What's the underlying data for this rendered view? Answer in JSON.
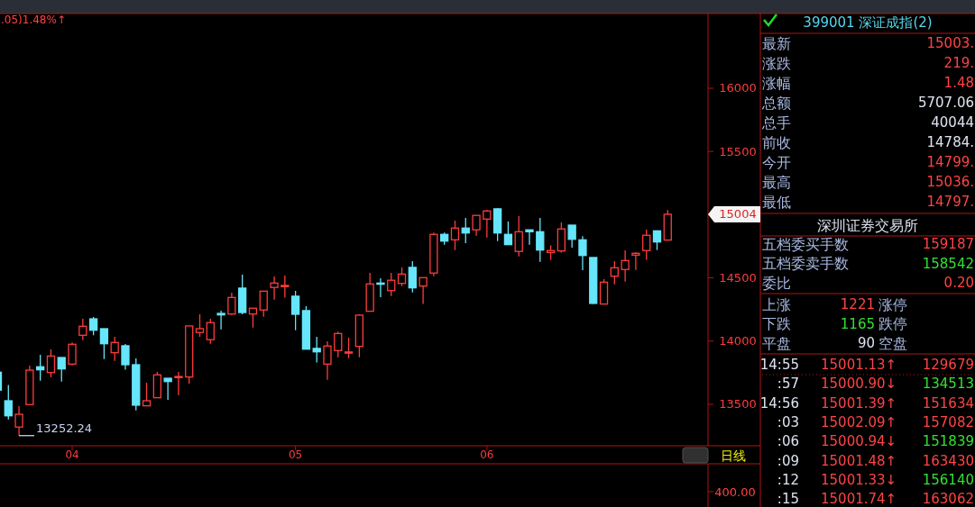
{
  "chart_data": {
    "type": "candlestick",
    "categories": [
      null,
      null,
      null,
      null,
      null,
      null,
      null,
      "04",
      null,
      null,
      null,
      null,
      null,
      null,
      null,
      null,
      null,
      null,
      null,
      null,
      null,
      null,
      null,
      null,
      null,
      null,
      null,
      null,
      "05",
      null,
      null,
      null,
      null,
      null,
      null,
      null,
      null,
      null,
      null,
      null,
      null,
      null,
      null,
      null,
      null,
      null,
      "06",
      null,
      null,
      null,
      null,
      null,
      null,
      null,
      null,
      null,
      null,
      null,
      null,
      null,
      null,
      null,
      null,
      null
    ],
    "ohlc": [
      [
        13754,
        13754,
        13612,
        13612
      ],
      [
        13528,
        13652,
        13381,
        13409
      ],
      [
        13320,
        13486,
        13252.24,
        13421
      ],
      [
        13498,
        13806,
        13498,
        13770
      ],
      [
        13797,
        13892,
        13687,
        13773
      ],
      [
        13751,
        13934,
        13714,
        13882
      ],
      [
        13870,
        13870,
        13680,
        13780
      ],
      [
        13818,
        13989,
        13808,
        13975
      ],
      [
        14046,
        14176,
        14008,
        14117
      ],
      [
        14176,
        14191,
        14046,
        14086
      ],
      [
        14098,
        14098,
        13858,
        13979
      ],
      [
        13908,
        14034,
        13844,
        13989
      ],
      [
        13963,
        13977,
        13773,
        13813
      ],
      [
        13813,
        13863,
        13452,
        13493
      ],
      [
        13488,
        13671,
        13488,
        13528
      ],
      [
        13552,
        13756,
        13552,
        13733
      ],
      [
        13706,
        13706,
        13535,
        13680
      ],
      [
        13716,
        13756,
        13571,
        13720
      ],
      [
        13716,
        14120,
        13664,
        14120
      ],
      [
        14068,
        14212,
        14034,
        14098
      ],
      [
        14011,
        14176,
        13979,
        14146
      ],
      [
        14219,
        14241,
        14093,
        14207
      ],
      [
        14214,
        14383,
        14207,
        14345
      ],
      [
        14419,
        14526,
        14212,
        14226
      ],
      [
        14214,
        14260,
        14107,
        14260
      ],
      [
        14246,
        14395,
        14193,
        14395
      ],
      [
        14424,
        14511,
        14328,
        14459
      ],
      [
        14436,
        14518,
        14343,
        14440
      ],
      [
        14355,
        14397,
        14086,
        14212
      ],
      [
        14241,
        14276,
        13936,
        13936
      ],
      [
        13942,
        14034,
        13830,
        13915
      ],
      [
        13818,
        13998,
        13694,
        13961
      ],
      [
        13925,
        14075,
        13872,
        14060
      ],
      [
        13911,
        14027,
        13865,
        13914
      ],
      [
        13958,
        14212,
        13872,
        14205
      ],
      [
        14236,
        14540,
        14236,
        14452
      ],
      [
        14459,
        14497,
        14347,
        14455
      ],
      [
        14399,
        14540,
        14357,
        14481
      ],
      [
        14456,
        14583,
        14435,
        14530
      ],
      [
        14583,
        14632,
        14385,
        14421
      ],
      [
        14435,
        14502,
        14293,
        14502
      ],
      [
        14538,
        14858,
        14513,
        14844
      ],
      [
        14844,
        14858,
        14763,
        14791
      ],
      [
        14801,
        14953,
        14720,
        14894
      ],
      [
        14894,
        14974,
        14775,
        14855
      ],
      [
        14880,
        14994,
        14834,
        14994
      ],
      [
        14965,
        15038,
        14820,
        15029
      ],
      [
        15046,
        15053,
        14791,
        14855
      ],
      [
        14844,
        14946,
        14763,
        14763
      ],
      [
        14709,
        14989,
        14670,
        14865
      ],
      [
        14880,
        14880,
        14763,
        14865
      ],
      [
        14865,
        14974,
        14627,
        14720
      ],
      [
        14701,
        14758,
        14642,
        14716
      ],
      [
        14713,
        14939,
        14699,
        14887
      ],
      [
        14917,
        14917,
        14739,
        14805
      ],
      [
        14801,
        14830,
        14561,
        14677
      ],
      [
        14661,
        14661,
        14293,
        14298
      ],
      [
        14293,
        14490,
        14293,
        14466
      ],
      [
        14513,
        14632,
        14449,
        14580
      ],
      [
        14566,
        14718,
        14471,
        14637
      ],
      [
        14680,
        14704,
        14563,
        14694
      ],
      [
        14716,
        14882,
        14642,
        14837
      ],
      [
        14872,
        14872,
        14720,
        14784
      ],
      [
        14799,
        15036,
        14797,
        15003
      ]
    ],
    "colors": [
      "#66e6fa",
      "#66e6fa",
      "#ff3c3c",
      "#ff3c3c",
      "#66e6fa",
      "#ff3c3c",
      "#66e6fa",
      "#ff3c3c",
      "#ff3c3c",
      "#66e6fa",
      "#66e6fa",
      "#ff3c3c",
      "#66e6fa",
      "#66e6fa",
      "#ff3c3c",
      "#ff3c3c",
      "#66e6fa",
      "#ff3c3c",
      "#ff3c3c",
      "#ff3c3c",
      "#ff3c3c",
      "#66e6fa",
      "#ff3c3c",
      "#66e6fa",
      "#ff3c3c",
      "#ff3c3c",
      "#ff3c3c",
      "#ff3c3c",
      "#66e6fa",
      "#66e6fa",
      "#66e6fa",
      "#ff3c3c",
      "#ff3c3c",
      "#ff3c3c",
      "#ff3c3c",
      "#ff3c3c",
      "#66e6fa",
      "#ff3c3c",
      "#ff3c3c",
      "#66e6fa",
      "#ff3c3c",
      "#ff3c3c",
      "#66e6fa",
      "#ff3c3c",
      "#66e6fa",
      "#ff3c3c",
      "#ff3c3c",
      "#66e6fa",
      "#66e6fa",
      "#ff3c3c",
      "#66e6fa",
      "#66e6fa",
      "#ff3c3c",
      "#ff3c3c",
      "#66e6fa",
      "#66e6fa",
      "#66e6fa",
      "#ff3c3c",
      "#ff3c3c",
      "#ff3c3c",
      "#ff3c3c",
      "#ff3c3c",
      "#66e6fa",
      "#ff3c3c"
    ],
    "ylim": [
      13172,
      16591
    ],
    "yticks": [
      13500,
      14000,
      14500,
      15500,
      16000
    ],
    "annotations": [
      ".05)1.48%↑",
      "13252.24",
      "15004",
      "400.00",
      "日线",
      "399001 深证成指(2)",
      "最新",
      "15003.",
      "涨跌",
      "219.",
      "涨幅",
      "1.48",
      "总额",
      "5707.06",
      "总手",
      "40044",
      "前收",
      "14784.",
      "今开",
      "14799.",
      "最高",
      "15036.",
      "最低",
      "14797.",
      "深圳证券交易所",
      "五档委买手数",
      "159187",
      "五档委卖手数",
      "158542",
      "委比",
      "0.20",
      "上涨",
      "1221",
      "涨停",
      "下跌",
      "1165",
      "跌停",
      "平盘",
      "90",
      "空盘",
      "14:55",
      "15001.13↑",
      "129679",
      ":57",
      "15000.90↓",
      "134513",
      "14:56",
      "15001.39↑",
      "151634",
      ":03",
      "15002.09↑",
      "157082",
      ":06",
      "15000.94↓",
      "151839",
      ":09",
      "15001.48↑",
      "163430",
      ":12",
      "15001.33↓",
      "156140",
      ":15",
      "15001.74↑",
      "163062"
    ]
  }
}
